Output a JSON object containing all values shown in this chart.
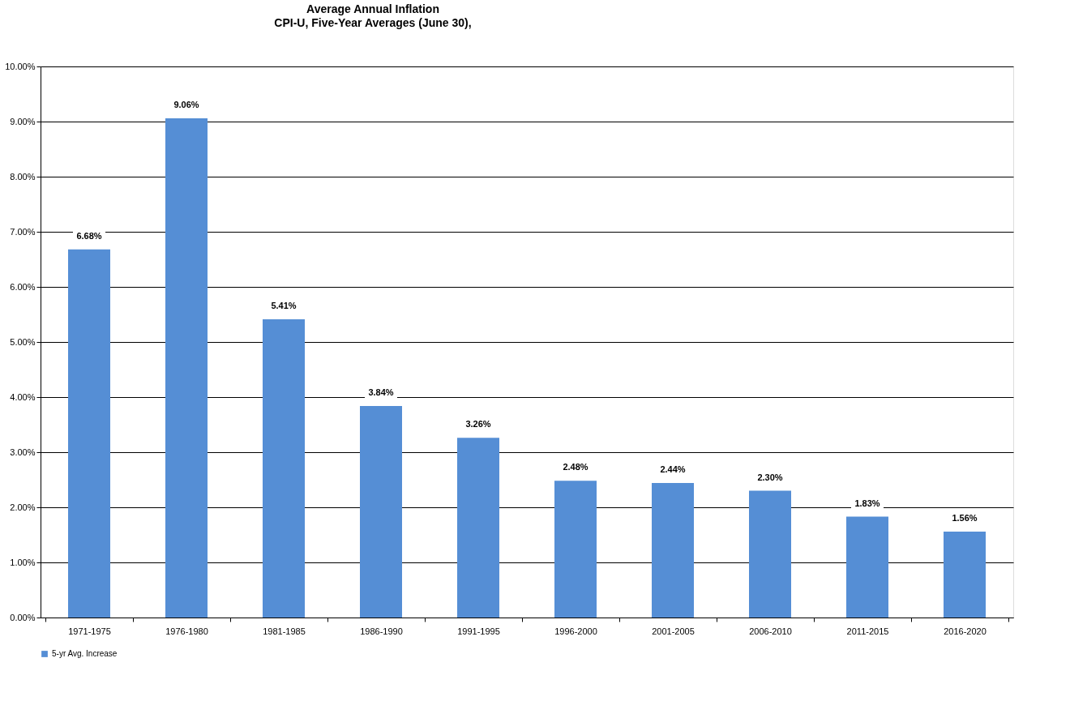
{
  "chart_data": {
    "type": "bar",
    "title": "Average Annual Inflation",
    "subtitle": "CPI-U, Five-Year Averages (June 30),",
    "categories": [
      "1971-1975",
      "1976-1980",
      "1981-1985",
      "1986-1990",
      "1991-1995",
      "1996-2000",
      "2001-2005",
      "2006-2010",
      "2011-2015",
      "2016-2020"
    ],
    "series": [
      {
        "name": "5-yr Avg. Increase",
        "color": "#558ed5",
        "values": [
          6.68,
          9.06,
          5.41,
          3.84,
          3.26,
          2.48,
          2.44,
          2.3,
          1.83,
          1.56
        ],
        "value_labels": [
          "6.68%",
          "9.06%",
          "5.41%",
          "3.84%",
          "3.26%",
          "2.48%",
          "2.44%",
          "2.30%",
          "1.83%",
          "1.56%"
        ]
      }
    ],
    "ylim": [
      0,
      10
    ],
    "yticks": [
      {
        "value": 0,
        "label": "0.00%"
      },
      {
        "value": 1,
        "label": "1.00%"
      },
      {
        "value": 2,
        "label": "2.00%"
      },
      {
        "value": 3,
        "label": "3.00%"
      },
      {
        "value": 4,
        "label": "4.00%"
      },
      {
        "value": 5,
        "label": "5.00%"
      },
      {
        "value": 6,
        "label": "6.00%"
      },
      {
        "value": 7,
        "label": "7.00%"
      },
      {
        "value": 8,
        "label": "8.00%"
      },
      {
        "value": 9,
        "label": "9.00%"
      },
      {
        "value": 10,
        "label": "10.00%"
      }
    ],
    "grid": "y",
    "legend": "bottom"
  }
}
